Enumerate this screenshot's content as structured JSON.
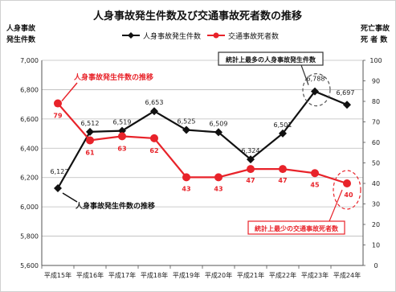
{
  "chart_data": {
    "type": "line",
    "title": "人身事故発生件数及び交通事故死者数の推移",
    "categories": [
      "平成15年",
      "平成16年",
      "平成17年",
      "平成18年",
      "平成19年",
      "平成20年",
      "平成21年",
      "平成22年",
      "平成23年",
      "平成24年"
    ],
    "series": [
      {
        "name": "人身事故発生件数",
        "axis": "left",
        "values": [
          6127,
          6512,
          6519,
          6653,
          6525,
          6509,
          6324,
          6501,
          6788,
          6697
        ],
        "labels": [
          "6,127",
          "6,512",
          "6,519",
          "6,653",
          "6,525",
          "6,509",
          "6,324",
          "6,501",
          "6,788",
          "6,697"
        ],
        "color": "#111111",
        "marker": "diamond"
      },
      {
        "name": "交通事故死者数",
        "axis": "right",
        "values": [
          79,
          61,
          63,
          62,
          43,
          43,
          47,
          47,
          45,
          40
        ],
        "labels": [
          "79",
          "61",
          "63",
          "62",
          "43",
          "43",
          "47",
          "47",
          "45",
          "40"
        ],
        "color": "#e8232a",
        "marker": "circle"
      }
    ],
    "left_axis": {
      "label": [
        "人身事故",
        "発生件数"
      ],
      "ylim": [
        5600,
        7000
      ],
      "ticks": [
        "5,600",
        "5,800",
        "6,000",
        "6,200",
        "6,400",
        "6,600",
        "6,800",
        "7,000"
      ]
    },
    "right_axis": {
      "label": [
        "死亡事故",
        "死 者 数"
      ],
      "ylim": [
        0,
        100
      ],
      "ticks": [
        "0",
        "10",
        "20",
        "30",
        "40",
        "50",
        "60",
        "70",
        "80",
        "90",
        "100"
      ]
    },
    "grid": true,
    "legend_position": "top",
    "annotations": {
      "red_series_label": "人身事故発生件数の推移",
      "black_series_label": "人身事故発生件数の推移",
      "max_label": "統計上最多の人身事故発生件数",
      "min_label": "統計上最少の交通事故死者数"
    }
  }
}
